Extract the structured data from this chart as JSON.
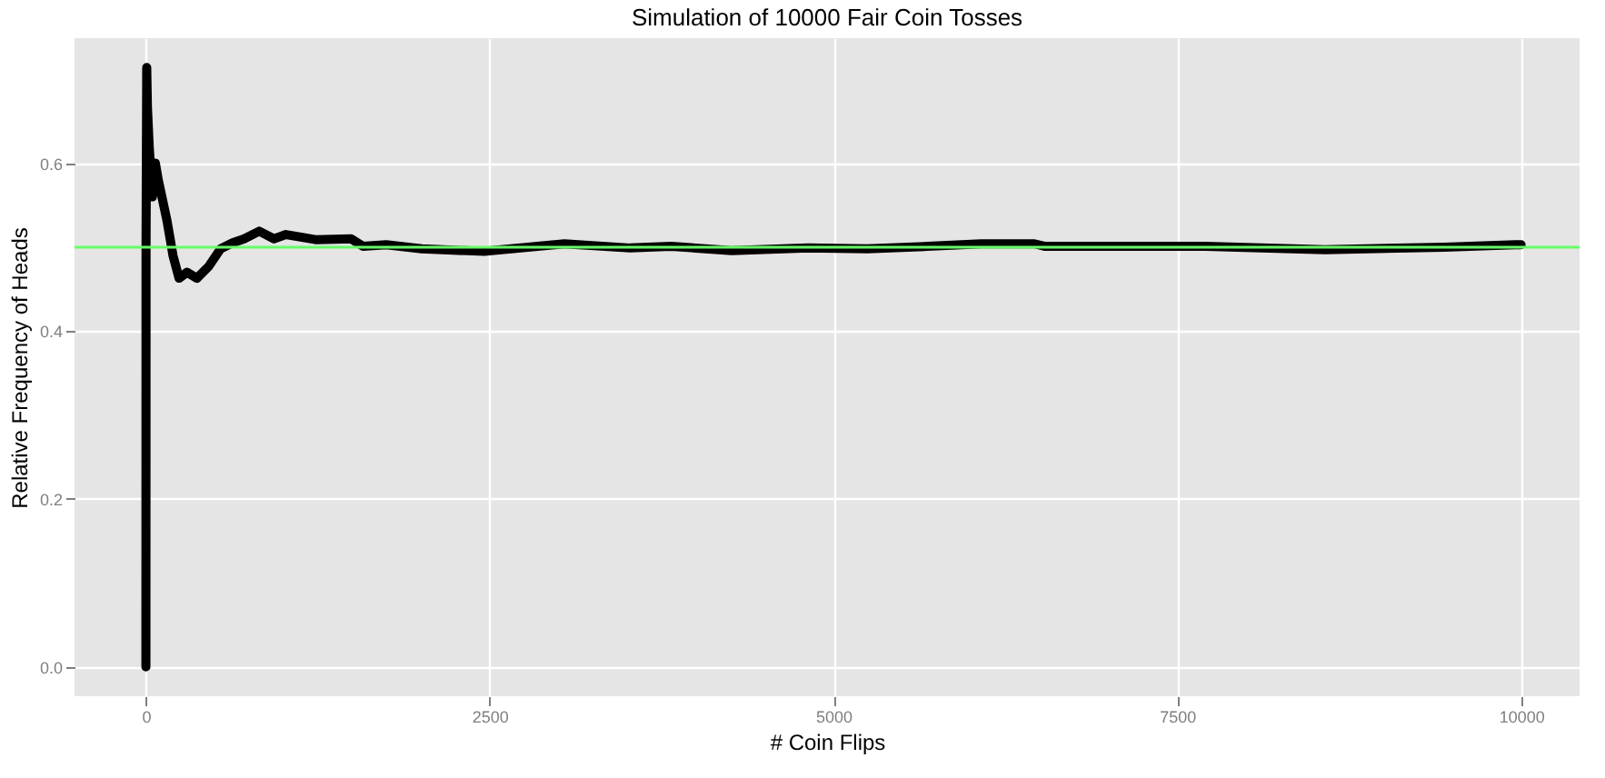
{
  "chart_data": {
    "type": "line",
    "title": "Simulation of 10000 Fair Coin Tosses",
    "xlabel": "# Coin Flips",
    "ylabel": "Relative Frequency of Heads",
    "xlim": [
      -518,
      10425
    ],
    "xticks": [
      0,
      2500,
      5000,
      7500,
      10000
    ],
    "ylim": [
      -0.035,
      0.749
    ],
    "yticks": [
      {
        "value": 0,
        "label": "0.0"
      },
      {
        "value": 0.2,
        "label": "0.2"
      },
      {
        "value": 0.4,
        "label": "0.4"
      },
      {
        "value": 0.6,
        "label": "0.6"
      }
    ],
    "grid": true,
    "line_style": "solid",
    "series": [
      {
        "color": "#000000",
        "x": [
          1,
          2,
          7,
          12,
          25,
          48,
          70,
          91,
          155,
          198,
          242,
          300,
          372,
          457,
          544,
          630,
          716,
          825,
          932,
          1019,
          1234,
          1493,
          1580,
          1748,
          2007,
          2461,
          3044,
          3522,
          3820,
          4260,
          4817,
          5245,
          5685,
          6074,
          6462,
          6540,
          7705,
          8573,
          9440,
          9958,
          10000
        ],
        "values": [
          0,
          0.5,
          0.714,
          0.667,
          0.62,
          0.56,
          0.6,
          0.58,
          0.531,
          0.49,
          0.463,
          0.47,
          0.463,
          0.477,
          0.498,
          0.505,
          0.51,
          0.519,
          0.51,
          0.515,
          0.509,
          0.51,
          0.501,
          0.503,
          0.498,
          0.495,
          0.504,
          0.499,
          0.501,
          0.496,
          0.499,
          0.498,
          0.501,
          0.504,
          0.504,
          0.501,
          0.501,
          0.497,
          0.5,
          0.503,
          0.503
        ]
      }
    ],
    "ref_lines": [
      {
        "axis": "y",
        "value": 0.5,
        "color": "#66ff66"
      }
    ]
  }
}
